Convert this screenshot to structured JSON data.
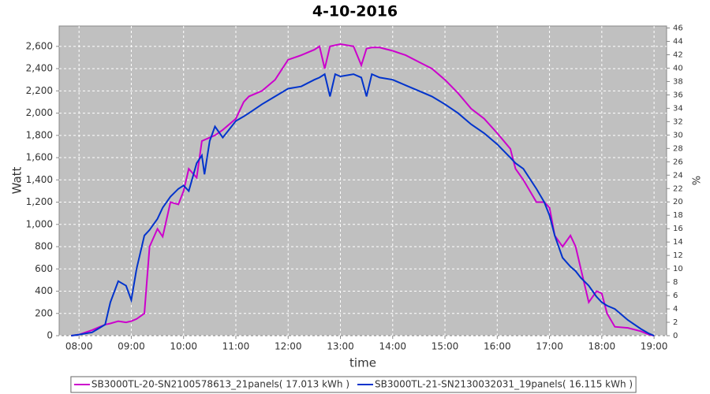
{
  "chart_data": {
    "type": "line",
    "title": "4-10-2016",
    "xlabel": "time",
    "ylabel": "Watt",
    "y2label": "%",
    "x": [
      7.85,
      8.0,
      8.25,
      8.5,
      8.6,
      8.75,
      8.9,
      9.0,
      9.1,
      9.25,
      9.35,
      9.5,
      9.6,
      9.75,
      9.9,
      10.0,
      10.1,
      10.25,
      10.35,
      10.4,
      10.5,
      10.6,
      10.75,
      11.0,
      11.15,
      11.25,
      11.5,
      11.75,
      12.0,
      12.25,
      12.5,
      12.6,
      12.7,
      12.8,
      12.9,
      13.0,
      13.25,
      13.4,
      13.5,
      13.6,
      13.75,
      14.0,
      14.25,
      14.5,
      14.75,
      15.0,
      15.25,
      15.5,
      15.75,
      16.0,
      16.25,
      16.35,
      16.5,
      16.75,
      16.9,
      17.0,
      17.1,
      17.25,
      17.4,
      17.5,
      17.6,
      17.75,
      17.9,
      18.0,
      18.1,
      18.25,
      18.5,
      18.75,
      18.9,
      19.0
    ],
    "series": [
      {
        "name": "SB3000TL-20-SN2100578613_21panels( 17.013 kWh )",
        "color": "#cc00cc",
        "values": [
          0,
          10,
          50,
          100,
          110,
          130,
          120,
          130,
          150,
          200,
          800,
          960,
          890,
          1200,
          1180,
          1300,
          1500,
          1420,
          1750,
          1760,
          1780,
          1800,
          1850,
          1950,
          2100,
          2150,
          2200,
          2300,
          2480,
          2520,
          2570,
          2600,
          2400,
          2600,
          2610,
          2620,
          2600,
          2430,
          2580,
          2590,
          2590,
          2560,
          2520,
          2460,
          2400,
          2300,
          2180,
          2040,
          1950,
          1820,
          1680,
          1500,
          1400,
          1200,
          1200,
          1150,
          900,
          800,
          900,
          800,
          600,
          300,
          400,
          380,
          200,
          80,
          70,
          40,
          10,
          0
        ]
      },
      {
        "name": "SB3000TL-21-SN2130032031_19panels( 16.115 kWh )",
        "color": "#0033cc",
        "values": [
          0,
          10,
          30,
          100,
          300,
          490,
          450,
          320,
          600,
          900,
          950,
          1050,
          1150,
          1250,
          1320,
          1350,
          1300,
          1550,
          1620,
          1450,
          1750,
          1880,
          1780,
          1930,
          1970,
          2000,
          2080,
          2150,
          2220,
          2240,
          2300,
          2320,
          2350,
          2150,
          2350,
          2330,
          2350,
          2320,
          2150,
          2350,
          2320,
          2300,
          2250,
          2200,
          2150,
          2080,
          2000,
          1900,
          1820,
          1720,
          1600,
          1550,
          1500,
          1320,
          1200,
          1080,
          900,
          700,
          620,
          580,
          520,
          450,
          350,
          300,
          270,
          240,
          140,
          60,
          20,
          0
        ]
      }
    ],
    "xlim": [
      7.62,
      19.24
    ],
    "xticks": [
      {
        "value": 8,
        "label": "08:00"
      },
      {
        "value": 9,
        "label": "09:00"
      },
      {
        "value": 10,
        "label": "10:00"
      },
      {
        "value": 11,
        "label": "11:00"
      },
      {
        "value": 12,
        "label": "12:00"
      },
      {
        "value": 13,
        "label": "13:00"
      },
      {
        "value": 14,
        "label": "14:00"
      },
      {
        "value": 15,
        "label": "15:00"
      },
      {
        "value": 16,
        "label": "16:00"
      },
      {
        "value": 17,
        "label": "17:00"
      },
      {
        "value": 18,
        "label": "18:00"
      },
      {
        "value": 19,
        "label": "19:00"
      }
    ],
    "ylim": [
      0,
      2783
    ],
    "yticks": [
      0,
      200,
      400,
      600,
      800,
      {
        "value": 1000,
        "label": "1,000"
      },
      {
        "value": 1200,
        "label": "1,200"
      },
      {
        "value": 1400,
        "label": "1,400"
      },
      {
        "value": 1600,
        "label": "1,600"
      },
      {
        "value": 1800,
        "label": "1,800"
      },
      {
        "value": 2000,
        "label": "2,000"
      },
      {
        "value": 2200,
        "label": "2,200"
      },
      {
        "value": 2400,
        "label": "2,400"
      },
      {
        "value": 2600,
        "label": "2,600"
      }
    ],
    "y2lim": [
      0,
      46.3
    ],
    "y2ticks": [
      0,
      2,
      4,
      6,
      8,
      10,
      12,
      14,
      16,
      18,
      20,
      22,
      24,
      26,
      28,
      30,
      32,
      34,
      36,
      38,
      40,
      42,
      44,
      46
    ],
    "grid": true,
    "legend": "bottom",
    "background": "#c0c0c0"
  }
}
